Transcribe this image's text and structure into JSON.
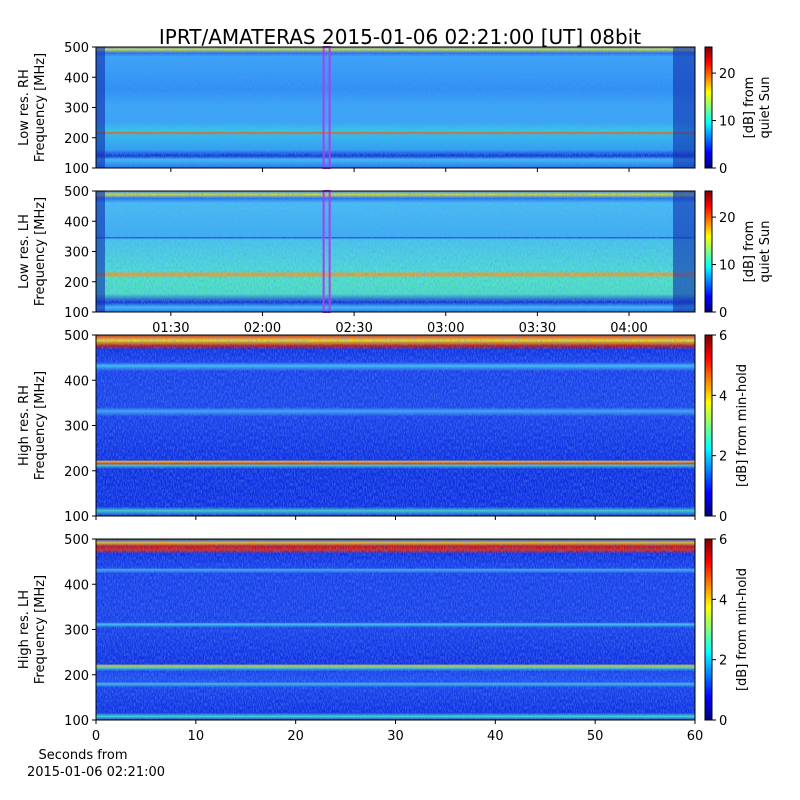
{
  "chart_data": [
    {
      "type": "spectrogram",
      "title": "IPRT/AMATERAS 2015-01-06 02:21:00 [UT]   08bit",
      "ylabel": [
        "Low res. RH",
        "Frequency [MHz]"
      ],
      "ylim": [
        100,
        500
      ],
      "yticks": [
        100,
        200,
        300,
        400,
        500
      ],
      "xlim": [
        65.5,
        261.6
      ],
      "xticks": [
        90,
        120,
        150,
        180,
        210,
        240
      ],
      "cursor_x": 141,
      "cursor_color": "#b03cf0",
      "colorbar": {
        "label": [
          "[dB] from",
          "quiet Sun"
        ],
        "lim": [
          0,
          25.5
        ],
        "ticks": [
          0,
          10,
          20
        ]
      }
    },
    {
      "type": "spectrogram",
      "ylabel": [
        "Low res. LH",
        "Frequency [MHz]"
      ],
      "ylim": [
        100,
        500
      ],
      "yticks": [
        100,
        200,
        300,
        400,
        500
      ],
      "xlim": [
        65.5,
        261.6
      ],
      "xticks": [
        {
          "value": 90,
          "label": "01:30"
        },
        {
          "value": 120,
          "label": "02:00"
        },
        {
          "value": 150,
          "label": "02:30"
        },
        {
          "value": 180,
          "label": "03:00"
        },
        {
          "value": 210,
          "label": "03:30"
        },
        {
          "value": 240,
          "label": "04:00"
        }
      ],
      "cursor_x": 141,
      "cursor_color": "#b03cf0",
      "colorbar": {
        "label": [
          "[dB] from",
          "quiet Sun"
        ],
        "lim": [
          0,
          25.5
        ],
        "ticks": [
          0,
          10,
          20
        ]
      }
    },
    {
      "type": "spectrogram",
      "ylabel": [
        "High res. RH",
        "Frequency [MHz]"
      ],
      "ylim": [
        100,
        500
      ],
      "yticks": [
        100,
        200,
        300,
        400,
        500
      ],
      "xlim": [
        0,
        60
      ],
      "xticks": [
        0,
        10,
        20,
        30,
        40,
        50,
        60
      ],
      "colorbar": {
        "label": [
          "[dB] from min-hold"
        ],
        "lim": [
          0,
          6
        ],
        "ticks": [
          0,
          2,
          4,
          6
        ]
      }
    },
    {
      "type": "spectrogram",
      "ylabel": [
        "High res. LH",
        "Frequency [MHz]"
      ],
      "ylim": [
        100,
        500
      ],
      "yticks": [
        100,
        200,
        300,
        400,
        500
      ],
      "xlim": [
        0,
        60
      ],
      "xticks": [
        0,
        10,
        20,
        30,
        40,
        50,
        60
      ],
      "xlabel": [
        "Seconds from",
        "2015-01-06 02:21:00"
      ],
      "colorbar": {
        "label": [
          "[dB] from min-hold"
        ],
        "lim": [
          0,
          6
        ],
        "ticks": [
          0,
          2,
          4,
          6
        ]
      }
    }
  ]
}
